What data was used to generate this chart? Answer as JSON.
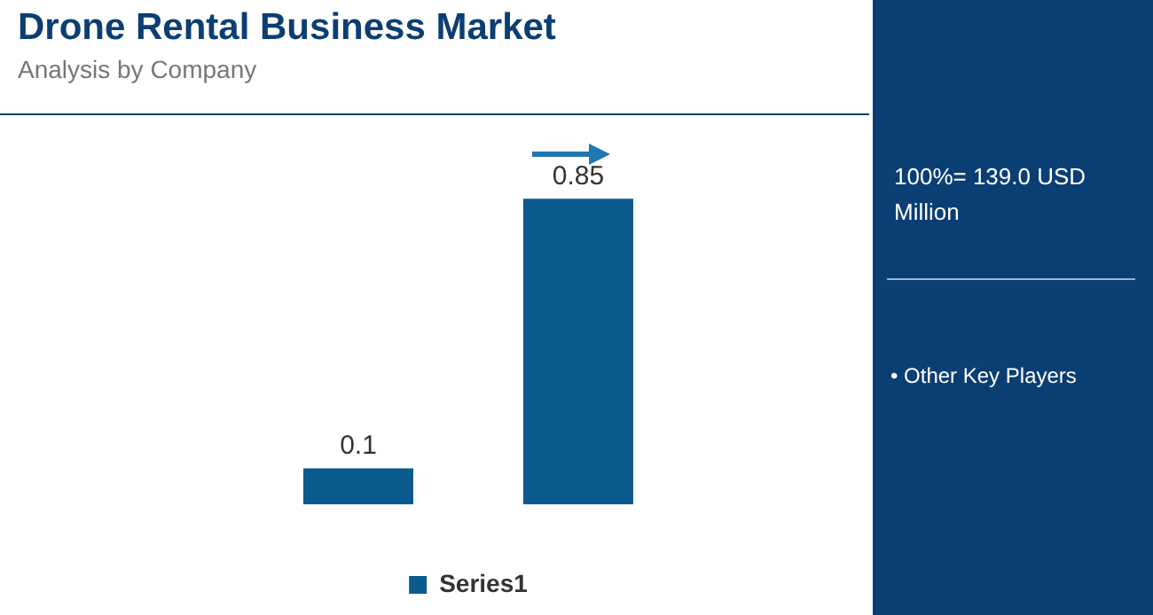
{
  "chart_data": {
    "type": "bar",
    "title": "Drone Rental Business Market",
    "subtitle": "Analysis by Company",
    "categories": [
      null,
      null
    ],
    "series": [
      {
        "name": "Series1",
        "color": "#0b5a8e",
        "values": [
          0.1,
          0.85
        ]
      }
    ],
    "data_labels": true,
    "legend": "bottom",
    "annotations": [
      "100%= 139.0 USD Million",
      "• Other Key Players"
    ]
  }
}
